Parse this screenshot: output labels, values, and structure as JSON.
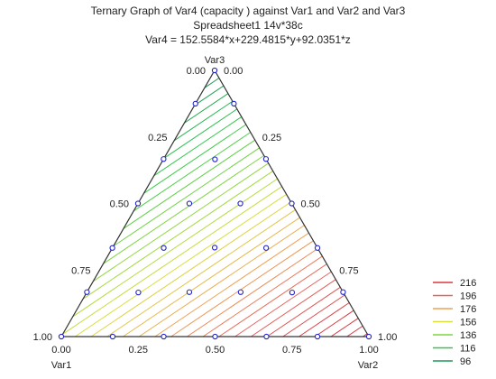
{
  "chart_data": {
    "type": "ternary-contour",
    "title_lines": [
      "Ternary Graph of Var4  (capacity ) against Var1 and Var2 and Var3",
      "Spreadsheet1 14v*38c",
      "Var4 = 152.5584*x+229.4815*y+92.0351*z"
    ],
    "model": {
      "x": 152.5584,
      "y": 229.4815,
      "z": 92.0351
    },
    "axes": {
      "var1": {
        "name": "Var1"
      },
      "var2": {
        "name": "Var2"
      },
      "var3": {
        "name": "Var3"
      }
    },
    "tick_labels": {
      "bottom": [
        "0.00",
        "0.25",
        "0.50",
        "0.75",
        "1.00"
      ],
      "left": [
        "0.00",
        "0.25",
        "0.50",
        "0.75",
        "1.00"
      ],
      "right": [
        "1.00",
        "0.75",
        "0.50",
        "0.25",
        "0.00"
      ]
    },
    "contour_levels": [
      96,
      116,
      136,
      156,
      176,
      196,
      216
    ],
    "contour_step": 4,
    "legend": {
      "position": "right",
      "items": [
        {
          "label": "216",
          "color": "#d9383f"
        },
        {
          "label": "196",
          "color": "#e8625b"
        },
        {
          "label": "176",
          "color": "#f0a050"
        },
        {
          "label": "156",
          "color": "#d8e03c"
        },
        {
          "label": "136",
          "color": "#7ed640"
        },
        {
          "label": "116",
          "color": "#30c84c"
        },
        {
          "label": "96",
          "color": "#1f9a5a"
        }
      ]
    },
    "points": [
      {
        "var1": 0.0,
        "var2": 0.0,
        "var3": 1.0
      },
      {
        "var1": 0.125,
        "var2": 0.0,
        "var3": 0.875
      },
      {
        "var1": 0.0,
        "var2": 0.125,
        "var3": 0.875
      },
      {
        "var1": 0.333,
        "var2": 0.0,
        "var3": 0.667
      },
      {
        "var1": 0.167,
        "var2": 0.167,
        "var3": 0.667
      },
      {
        "var1": 0.0,
        "var2": 0.333,
        "var3": 0.667
      },
      {
        "var1": 0.5,
        "var2": 0.0,
        "var3": 0.5
      },
      {
        "var1": 0.333,
        "var2": 0.167,
        "var3": 0.5
      },
      {
        "var1": 0.167,
        "var2": 0.333,
        "var3": 0.5
      },
      {
        "var1": 0.0,
        "var2": 0.5,
        "var3": 0.5
      },
      {
        "var1": 0.667,
        "var2": 0.0,
        "var3": 0.333
      },
      {
        "var1": 0.5,
        "var2": 0.167,
        "var3": 0.333
      },
      {
        "var1": 0.333,
        "var2": 0.333,
        "var3": 0.333
      },
      {
        "var1": 0.167,
        "var2": 0.5,
        "var3": 0.333
      },
      {
        "var1": 0.0,
        "var2": 0.667,
        "var3": 0.333
      },
      {
        "var1": 0.833,
        "var2": 0.0,
        "var3": 0.167
      },
      {
        "var1": 0.667,
        "var2": 0.167,
        "var3": 0.167
      },
      {
        "var1": 0.5,
        "var2": 0.333,
        "var3": 0.167
      },
      {
        "var1": 0.333,
        "var2": 0.5,
        "var3": 0.167
      },
      {
        "var1": 0.167,
        "var2": 0.667,
        "var3": 0.167
      },
      {
        "var1": 0.0,
        "var2": 0.833,
        "var3": 0.167
      },
      {
        "var1": 1.0,
        "var2": 0.0,
        "var3": 0.0
      },
      {
        "var1": 0.833,
        "var2": 0.167,
        "var3": 0.0
      },
      {
        "var1": 0.667,
        "var2": 0.333,
        "var3": 0.0
      },
      {
        "var1": 0.5,
        "var2": 0.5,
        "var3": 0.0
      },
      {
        "var1": 0.333,
        "var2": 0.667,
        "var3": 0.0
      },
      {
        "var1": 0.167,
        "var2": 0.833,
        "var3": 0.0
      },
      {
        "var1": 0.0,
        "var2": 1.0,
        "var3": 0.0
      }
    ],
    "point_color": "#2222cc",
    "grid": false
  }
}
